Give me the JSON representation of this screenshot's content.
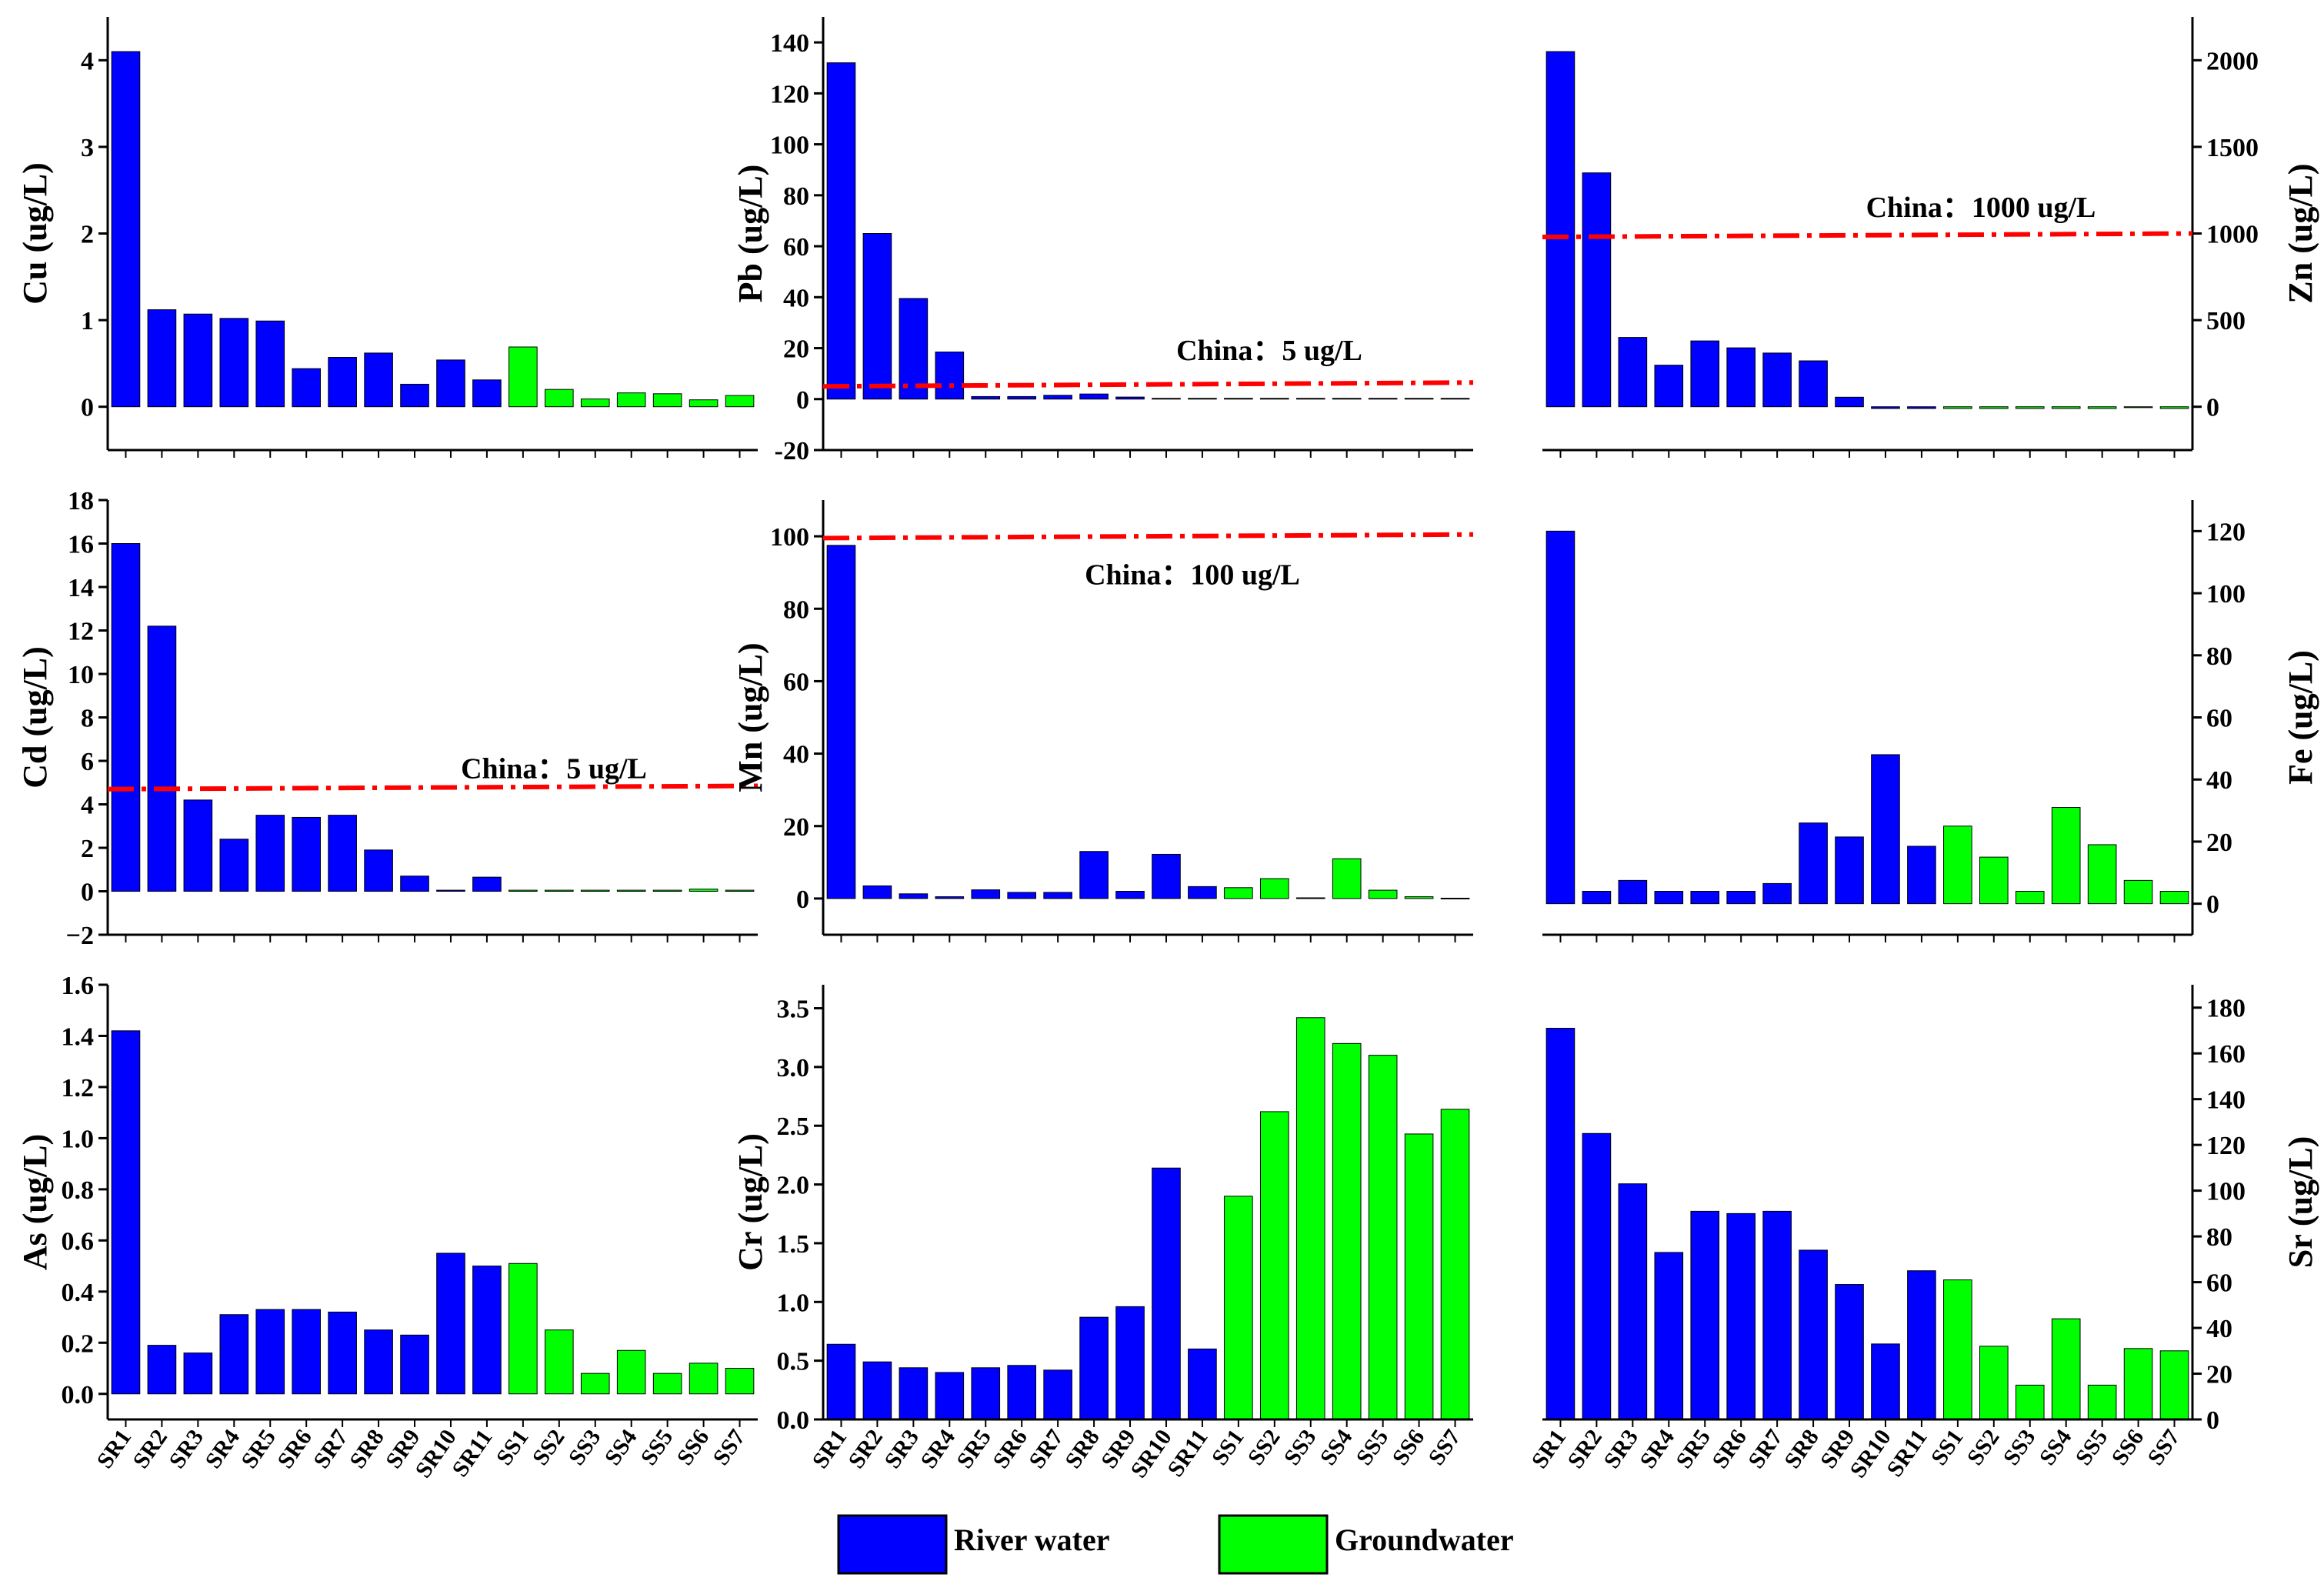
{
  "categories": [
    "SR1",
    "SR2",
    "SR3",
    "SR4",
    "SR5",
    "SR6",
    "SR7",
    "SR8",
    "SR9",
    "SR10",
    "SR11",
    "SS1",
    "SS2",
    "SS3",
    "SS4",
    "SS5",
    "SS6",
    "SS7"
  ],
  "legend": [
    {
      "label": "River water",
      "color": "#0000ff"
    },
    {
      "label": "Groundwater",
      "color": "#00ff00"
    }
  ],
  "guide_color": "#ff0000",
  "chart_data": [
    {
      "type": "bar",
      "title": "",
      "ylabel": "Cu (ug/L)",
      "ylabel_side": "left",
      "ylim": [
        -0.5,
        4.5
      ],
      "yticks": [
        0,
        1,
        2,
        3,
        4
      ],
      "ytick_labels": [
        "0",
        "1",
        "2",
        "3",
        "4"
      ],
      "values": [
        4.1,
        1.12,
        1.07,
        1.02,
        0.99,
        0.44,
        0.57,
        0.62,
        0.26,
        0.54,
        0.31,
        0.69,
        0.2,
        0.09,
        0.16,
        0.15,
        0.08,
        0.13
      ],
      "guide": null
    },
    {
      "type": "bar",
      "title": "",
      "ylabel": "Pb (ug/L)",
      "ylabel_side": "left",
      "ylim": [
        -20,
        150
      ],
      "yticks": [
        -20,
        0,
        20,
        40,
        60,
        80,
        100,
        120,
        140
      ],
      "ytick_labels": [
        "-20",
        "0",
        "20",
        "40",
        "60",
        "80",
        "100",
        "120",
        "140"
      ],
      "values": [
        132,
        65,
        39.5,
        18.5,
        1,
        1,
        1.5,
        2,
        0.8,
        0.3,
        0.3,
        0.3,
        0.3,
        0.3,
        0.3,
        0.3,
        0.3,
        0.3
      ],
      "guide": {
        "value": 5,
        "value_end": 6.5,
        "label": "China：5 ug/L"
      }
    },
    {
      "type": "bar",
      "title": "",
      "ylabel": "Zn (ug/L)",
      "ylabel_side": "right",
      "ylim": [
        -250,
        2250
      ],
      "yticks": [
        0,
        500,
        1000,
        1500,
        2000
      ],
      "ytick_labels": [
        "0",
        "500",
        "1000",
        "1500",
        "2000"
      ],
      "values": [
        2050,
        1350,
        400,
        240,
        380,
        340,
        310,
        265,
        55,
        -10,
        -10,
        -10,
        -10,
        -10,
        -10,
        -10,
        -5,
        -10
      ],
      "guide": {
        "value": 980,
        "value_end": 1000,
        "label": "China：1000 ug/L"
      }
    },
    {
      "type": "bar",
      "title": "",
      "ylabel": "Cd (ug/L)",
      "ylabel_side": "left",
      "ylim": [
        -2,
        18
      ],
      "yticks": [
        -2,
        0,
        2,
        4,
        6,
        8,
        10,
        12,
        14,
        16,
        18
      ],
      "ytick_labels": [
        "−2",
        "0",
        "2",
        "4",
        "6",
        "8",
        "10",
        "12",
        "14",
        "16",
        "18"
      ],
      "values": [
        16,
        12.2,
        4.2,
        2.4,
        3.5,
        3.4,
        3.5,
        1.9,
        0.7,
        0.05,
        0.65,
        0.05,
        0.05,
        0.05,
        0.05,
        0.05,
        0.1,
        0.05
      ],
      "guide": {
        "value": 4.7,
        "value_end": 4.85,
        "label": "China：5 ug/L"
      }
    },
    {
      "type": "bar",
      "title": "",
      "ylabel": "Mn (ug/L)",
      "ylabel_side": "left",
      "ylim": [
        -10,
        110
      ],
      "yticks": [
        0,
        20,
        40,
        60,
        80,
        100
      ],
      "ytick_labels": [
        "0",
        "20",
        "40",
        "60",
        "80",
        "100"
      ],
      "values": [
        97.5,
        3.5,
        1.3,
        0.5,
        2.4,
        1.7,
        1.7,
        13,
        2,
        12.2,
        3.3,
        3,
        5.5,
        0.2,
        11,
        2.3,
        0.5,
        0.1
      ],
      "guide": {
        "value": 99.5,
        "value_end": 100.5,
        "label": "China：100 ug/L"
      }
    },
    {
      "type": "bar",
      "title": "",
      "ylabel": "Fe (ug/L)",
      "ylabel_side": "right",
      "ylim": [
        -10,
        130
      ],
      "yticks": [
        0,
        20,
        40,
        60,
        80,
        100,
        120
      ],
      "ytick_labels": [
        "0",
        "20",
        "40",
        "60",
        "80",
        "100",
        "120"
      ],
      "values": [
        120,
        4,
        7.5,
        4,
        4,
        4,
        6.5,
        26,
        21.5,
        48,
        18.5,
        25,
        15,
        4,
        31,
        19,
        7.5,
        4
      ],
      "guide": null
    },
    {
      "type": "bar",
      "title": "",
      "ylabel": "As (ug/L)",
      "ylabel_side": "left",
      "ylim": [
        -0.1,
        1.6
      ],
      "yticks": [
        0,
        0.2,
        0.4,
        0.6,
        0.8,
        1.0,
        1.2,
        1.4,
        1.6
      ],
      "ytick_labels": [
        "0.0",
        "0.2",
        "0.4",
        "0.6",
        "0.8",
        "1.0",
        "1.2",
        "1.4",
        "1.6"
      ],
      "values": [
        1.42,
        0.19,
        0.16,
        0.31,
        0.33,
        0.33,
        0.32,
        0.25,
        0.23,
        0.55,
        0.5,
        0.51,
        0.25,
        0.08,
        0.17,
        0.08,
        0.12,
        0.1
      ],
      "guide": null
    },
    {
      "type": "bar",
      "title": "",
      "ylabel": "Cr (ug/L)",
      "ylabel_side": "left",
      "ylim": [
        0,
        3.7
      ],
      "yticks": [
        0,
        0.5,
        1.0,
        1.5,
        2.0,
        2.5,
        3.0,
        3.5
      ],
      "ytick_labels": [
        "0.0",
        "0.5",
        "1.0",
        "1.5",
        "2.0",
        "2.5",
        "3.0",
        "3.5"
      ],
      "values": [
        0.64,
        0.49,
        0.44,
        0.4,
        0.44,
        0.46,
        0.42,
        0.87,
        0.96,
        2.14,
        0.6,
        1.9,
        2.62,
        3.42,
        3.2,
        3.1,
        2.43,
        2.64
      ],
      "guide": null
    },
    {
      "type": "bar",
      "title": "",
      "ylabel": "Sr (ug/L)",
      "ylabel_side": "right",
      "ylim": [
        0,
        190
      ],
      "yticks": [
        0,
        20,
        40,
        60,
        80,
        100,
        120,
        140,
        160,
        180
      ],
      "ytick_labels": [
        "0",
        "20",
        "40",
        "60",
        "80",
        "100",
        "120",
        "140",
        "160",
        "180"
      ],
      "values": [
        171,
        125,
        103,
        73,
        91,
        90,
        91,
        74,
        59,
        33,
        65,
        61,
        32,
        15,
        44,
        15,
        31,
        30
      ],
      "guide": null
    }
  ]
}
